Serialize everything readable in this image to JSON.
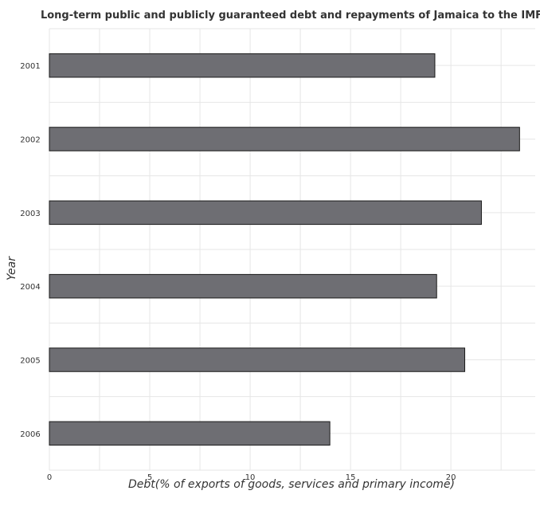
{
  "chart_data": {
    "type": "bar",
    "orientation": "horizontal",
    "title": "Long-term public and publicly guaranteed debt and repayments of Jamaica to the IMF",
    "xlabel": "Debt(% of exports of goods, services and primary income)",
    "ylabel": "Year",
    "categories": [
      "2001",
      "2002",
      "2003",
      "2004",
      "2005",
      "2006"
    ],
    "values": [
      19.2,
      23.42,
      21.52,
      19.29,
      20.69,
      13.97
    ],
    "xlim": [
      0,
      24.2
    ],
    "xticks": [
      0,
      5,
      10,
      15,
      20
    ],
    "xtick_labels": [
      "0",
      "5",
      "10",
      "15",
      "20"
    ],
    "grid": true,
    "bar_color": "#6e6e73"
  }
}
